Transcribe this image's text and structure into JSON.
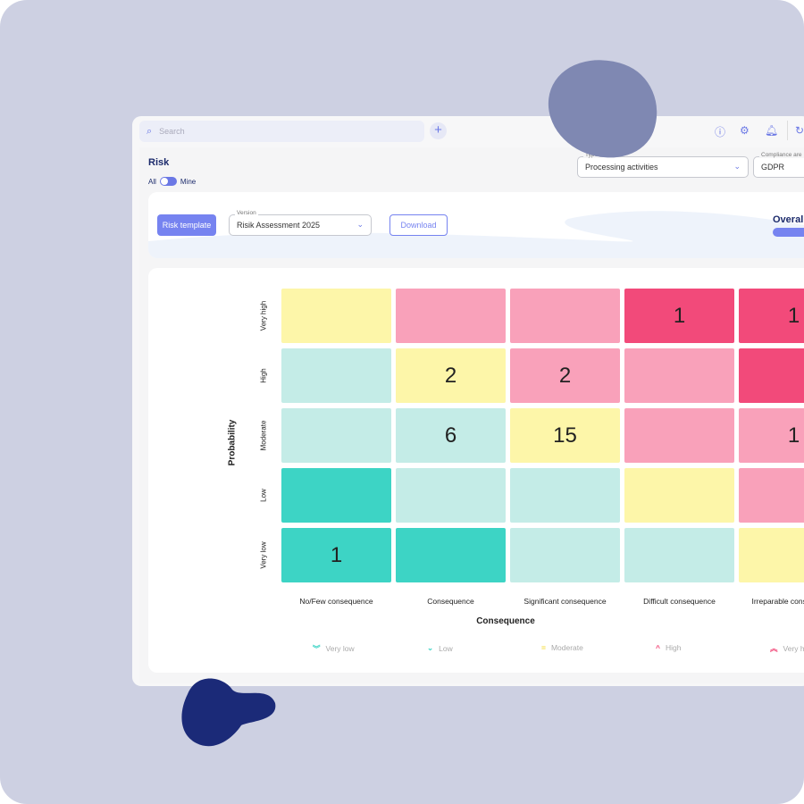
{
  "topbar": {
    "search_placeholder": "Search",
    "add_icon": "plus-icon",
    "icons": [
      "help-icon",
      "settings-icon",
      "bell-icon",
      "refresh-icon"
    ]
  },
  "page": {
    "title": "Risk",
    "toggle_left": "All",
    "toggle_right": "Mine"
  },
  "filters": {
    "type_label": "Type",
    "type_value": "Processing activities",
    "compliance_label": "Compliance are",
    "compliance_value": "GDPR"
  },
  "toolbar": {
    "risk_template": "Risk template",
    "version_label": "Version",
    "version_value": "Risik Assessment 2025",
    "download": "Download",
    "overall": "Overall"
  },
  "matrix": {
    "y_title": "Probability",
    "x_title": "Consequence",
    "rows": [
      "Very high",
      "High",
      "Moderate",
      "Low",
      "Very low"
    ],
    "columns": [
      "No/Few consequence",
      "Consequence",
      "Significant consequence",
      "Difficult consequence",
      "Irreparable consequence"
    ],
    "colors": {
      "very_low": "#3dd4c5",
      "low": "#c4ece7",
      "moderate": "#fdf6a9",
      "high": "#f9a1ba",
      "very_high": "#f24a7a"
    },
    "levels": [
      [
        "moderate",
        "high",
        "high",
        "very_high",
        "very_high"
      ],
      [
        "low",
        "moderate",
        "high",
        "high",
        "very_high"
      ],
      [
        "low",
        "low",
        "moderate",
        "high",
        "high"
      ],
      [
        "very_low",
        "low",
        "low",
        "moderate",
        "high"
      ],
      [
        "very_low",
        "very_low",
        "low",
        "low",
        "moderate"
      ]
    ],
    "counts": [
      [
        "",
        "",
        "",
        "1",
        "1"
      ],
      [
        "",
        "2",
        "2",
        "",
        ""
      ],
      [
        "",
        "6",
        "15",
        "",
        "1"
      ],
      [
        "",
        "",
        "",
        "",
        ""
      ],
      [
        "1",
        "",
        "",
        "",
        ""
      ]
    ]
  },
  "legend": [
    {
      "label": "Very low",
      "icon": "double-chevron-down-icon",
      "glyph": "︾",
      "color": "#3dd4c5"
    },
    {
      "label": "Low",
      "icon": "chevron-down-icon",
      "glyph": "⌄",
      "color": "#3dd4c5"
    },
    {
      "label": "Moderate",
      "icon": "equals-icon",
      "glyph": "=",
      "color": "#f5dc3c"
    },
    {
      "label": "High",
      "icon": "chevron-up-icon",
      "glyph": "^",
      "color": "#f24a7a"
    },
    {
      "label": "Very high",
      "icon": "double-chevron-up-icon",
      "glyph": "︽",
      "color": "#f24a7a"
    }
  ]
}
